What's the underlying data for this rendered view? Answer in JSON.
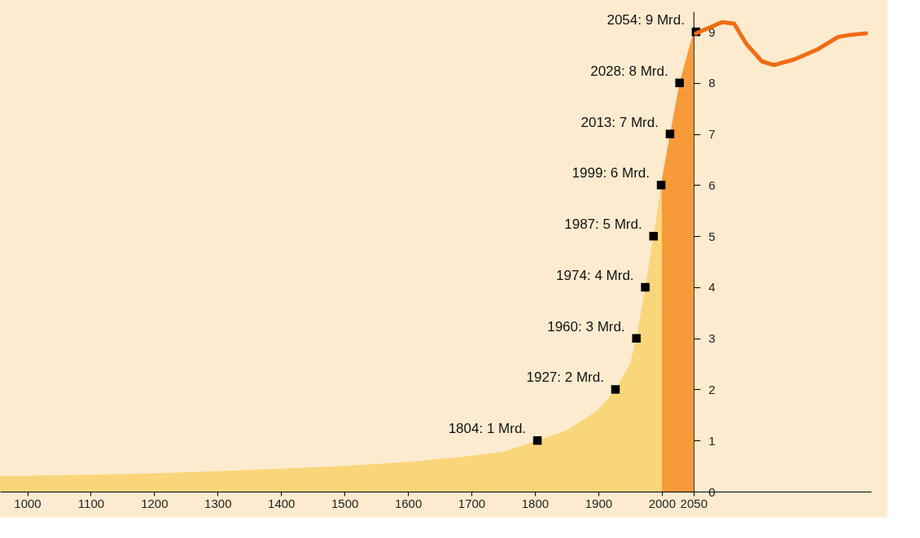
{
  "chart_data": {
    "type": "area",
    "xlim": [
      957,
      2330
    ],
    "ylim": [
      0,
      9.4
    ],
    "xticks": [
      1000,
      1100,
      1200,
      1300,
      1400,
      1500,
      1600,
      1700,
      1800,
      1900,
      2000,
      2050
    ],
    "yticks": [
      0,
      1,
      2,
      3,
      4,
      5,
      6,
      7,
      8,
      9
    ],
    "grid": false,
    "series": [
      {
        "color": "#f9d67a",
        "x": [
          957,
          1000,
          1100,
          1200,
          1300,
          1400,
          1500,
          1600,
          1700,
          1750,
          1804,
          1850,
          1900,
          1927,
          1950,
          1960,
          1974,
          1987,
          1999,
          2000
        ],
        "values": [
          0.3,
          0.31,
          0.33,
          0.36,
          0.4,
          0.45,
          0.5,
          0.58,
          0.7,
          0.78,
          1.0,
          1.2,
          1.6,
          2.0,
          2.5,
          3.0,
          4.0,
          5.0,
          6.0,
          6.1
        ]
      },
      {
        "color": "#f79a3a",
        "x": [
          2000,
          2013,
          2028,
          2050
        ],
        "values": [
          6.1,
          7.0,
          8.0,
          9.0
        ]
      },
      {
        "type": "scatter",
        "marker": "square",
        "color": "#000000",
        "x": [
          1804,
          1927,
          1960,
          1974,
          1987,
          1999,
          2013,
          2028,
          2054
        ],
        "values": [
          1,
          2,
          3,
          4,
          5,
          6,
          7,
          8,
          9
        ],
        "value_labels": [
          "1804: 1 Mrd.",
          "1927: 2 Mrd.",
          "1960: 3 Mrd.",
          "1974: 4 Mrd.",
          "1987: 5 Mrd.",
          "1999: 6 Mrd.",
          "2013: 7 Mrd.",
          "2028: 8 Mrd.",
          "2054: 9 Mrd."
        ]
      },
      {
        "type": "line",
        "color": "#f06c14",
        "x": [
          2054,
          2095,
          2114,
          2133,
          2158,
          2177,
          2209,
          2246,
          2278,
          2297,
          2322
        ],
        "values": [
          8.97,
          9.19,
          9.16,
          8.77,
          8.42,
          8.35,
          8.46,
          8.66,
          8.9,
          8.94,
          8.97
        ]
      }
    ]
  }
}
